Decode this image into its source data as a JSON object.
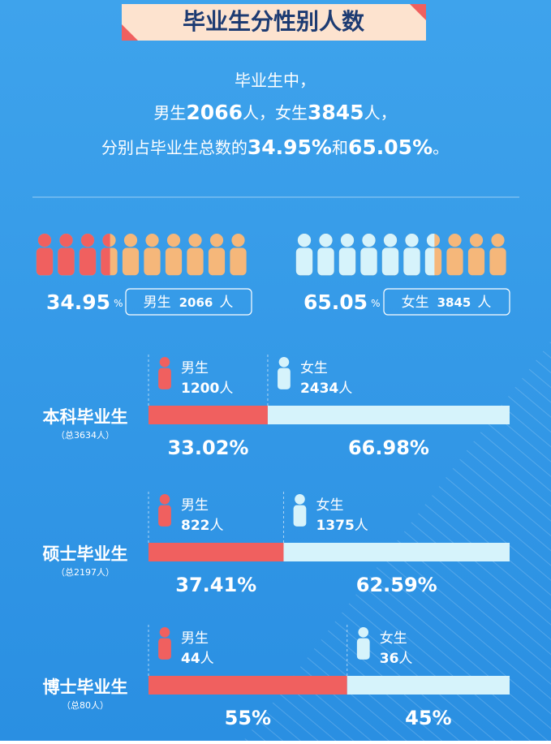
{
  "title": "毕业生分性别人数",
  "summary": {
    "line1": [
      "毕业生中，"
    ],
    "line2": [
      "男生",
      "2066",
      "人，女生",
      "3845",
      "人，"
    ],
    "line3": [
      "分别占毕业生总数的",
      "34.95%",
      "和",
      "65.05%",
      "。"
    ]
  },
  "overview": {
    "male": {
      "percent": 34.95,
      "unit": "%",
      "label": "男生",
      "count": 2066,
      "count_unit": "人"
    },
    "female": {
      "percent": 65.05,
      "unit": "%",
      "label": "女生",
      "count": 3845,
      "count_unit": "人"
    }
  },
  "groups": [
    {
      "name": "本科毕业生",
      "total_label": "（总3634人）",
      "male": {
        "label": "男生",
        "count": 1200,
        "unit": "人",
        "percent": 33.02,
        "percent_label": "33.02%"
      },
      "female": {
        "label": "女生",
        "count": 2434,
        "unit": "人",
        "percent": 66.98,
        "percent_label": "66.98%"
      }
    },
    {
      "name": "硕士毕业生",
      "total_label": "（总2197人）",
      "male": {
        "label": "男生",
        "count": 822,
        "unit": "人",
        "percent": 37.41,
        "percent_label": "37.41%"
      },
      "female": {
        "label": "女生",
        "count": 1375,
        "unit": "人",
        "percent": 62.59,
        "percent_label": "62.59%"
      }
    },
    {
      "name": "博士毕业生",
      "total_label": "（总80人）",
      "male": {
        "label": "男生",
        "count": 44,
        "unit": "人",
        "percent": 55,
        "percent_label": "55%"
      },
      "female": {
        "label": "女生",
        "count": 36,
        "unit": "人",
        "percent": 45,
        "percent_label": "45%"
      }
    }
  ]
}
